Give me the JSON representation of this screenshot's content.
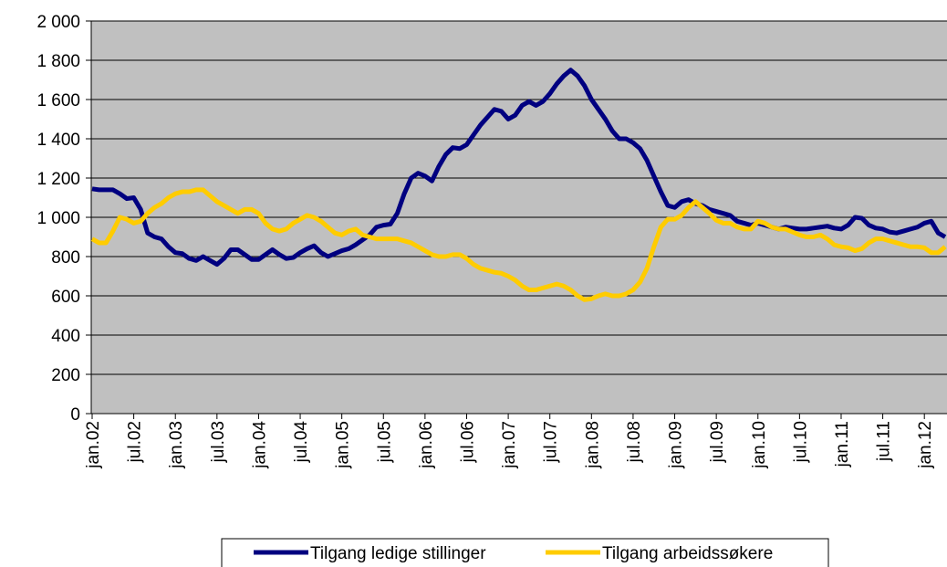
{
  "chart_data": {
    "type": "line",
    "categories": [
      "jan.02",
      null,
      null,
      null,
      null,
      null,
      "jul.02",
      null,
      null,
      null,
      null,
      null,
      "jan.03",
      null,
      null,
      null,
      null,
      null,
      "jul.03",
      null,
      null,
      null,
      null,
      null,
      "jan.04",
      null,
      null,
      null,
      null,
      null,
      "jul.04",
      null,
      null,
      null,
      null,
      null,
      "jan.05",
      null,
      null,
      null,
      null,
      null,
      "jul.05",
      null,
      null,
      null,
      null,
      null,
      "jan.06",
      null,
      null,
      null,
      null,
      null,
      "jul.06",
      null,
      null,
      null,
      null,
      null,
      "jan.07",
      null,
      null,
      null,
      null,
      null,
      "jul.07",
      null,
      null,
      null,
      null,
      null,
      "jan.08",
      null,
      null,
      null,
      null,
      null,
      "jul.08",
      null,
      null,
      null,
      null,
      null,
      "jan.09",
      null,
      null,
      null,
      null,
      null,
      "jul.09",
      null,
      null,
      null,
      null,
      null,
      "jan.10",
      null,
      null,
      null,
      null,
      null,
      "jul.10",
      null,
      null,
      null,
      null,
      null,
      "jan.11",
      null,
      null,
      null,
      null,
      null,
      "jul.11",
      null,
      null,
      null,
      null,
      null,
      "jan.12",
      null,
      null,
      null
    ],
    "series": [
      {
        "name": "Tilgang ledige stillinger",
        "color": "#000080",
        "values": [
          1145,
          1140,
          1140,
          1140,
          1120,
          1095,
          1100,
          1040,
          920,
          900,
          890,
          850,
          820,
          815,
          790,
          780,
          800,
          780,
          760,
          790,
          835,
          835,
          810,
          785,
          785,
          810,
          835,
          810,
          790,
          795,
          820,
          840,
          855,
          820,
          800,
          815,
          830,
          840,
          860,
          885,
          910,
          950,
          960,
          965,
          1020,
          1120,
          1200,
          1225,
          1210,
          1185,
          1260,
          1320,
          1355,
          1350,
          1370,
          1420,
          1470,
          1510,
          1550,
          1540,
          1500,
          1520,
          1570,
          1590,
          1570,
          1590,
          1630,
          1680,
          1720,
          1750,
          1720,
          1670,
          1600,
          1550,
          1500,
          1440,
          1400,
          1400,
          1380,
          1350,
          1290,
          1210,
          1130,
          1060,
          1050,
          1080,
          1090,
          1070,
          1060,
          1040,
          1030,
          1020,
          1010,
          980,
          970,
          960,
          970,
          960,
          950,
          940,
          950,
          945,
          940,
          940,
          945,
          950,
          955,
          945,
          940,
          960,
          1000,
          995,
          960,
          945,
          940,
          925,
          920,
          930,
          940,
          950,
          970,
          980,
          920,
          900
        ]
      },
      {
        "name": "Tilgang arbeidssøkere",
        "color": "#ffcc00",
        "values": [
          890,
          870,
          870,
          930,
          1000,
          990,
          970,
          980,
          1020,
          1050,
          1070,
          1100,
          1120,
          1130,
          1130,
          1140,
          1140,
          1110,
          1080,
          1060,
          1040,
          1020,
          1040,
          1040,
          1020,
          970,
          940,
          930,
          940,
          970,
          990,
          1010,
          1000,
          980,
          950,
          920,
          910,
          930,
          940,
          910,
          900,
          890,
          890,
          890,
          890,
          880,
          870,
          850,
          830,
          810,
          800,
          800,
          810,
          810,
          790,
          760,
          740,
          730,
          720,
          715,
          700,
          680,
          650,
          630,
          630,
          640,
          650,
          660,
          650,
          630,
          600,
          580,
          585,
          600,
          610,
          600,
          600,
          610,
          630,
          670,
          740,
          850,
          950,
          990,
          990,
          1010,
          1050,
          1080,
          1050,
          1020,
          985,
          970,
          970,
          950,
          940,
          940,
          980,
          970,
          950,
          940,
          940,
          925,
          910,
          900,
          900,
          910,
          890,
          860,
          850,
          845,
          830,
          840,
          870,
          890,
          890,
          880,
          870,
          860,
          850,
          850,
          845,
          820,
          820,
          850
        ]
      }
    ],
    "ylim": [
      0,
      2000
    ],
    "yticks": [
      0,
      200,
      400,
      600,
      800,
      {
        "value": 1000,
        "label": "1 000"
      },
      {
        "value": 1200,
        "label": "1 200"
      },
      {
        "value": 1400,
        "label": "1 400"
      },
      {
        "value": 1600,
        "label": "1 600"
      },
      {
        "value": 1800,
        "label": "1 800"
      },
      {
        "value": 2000,
        "label": "2 000"
      }
    ],
    "grid": true,
    "legend": "bottom"
  }
}
